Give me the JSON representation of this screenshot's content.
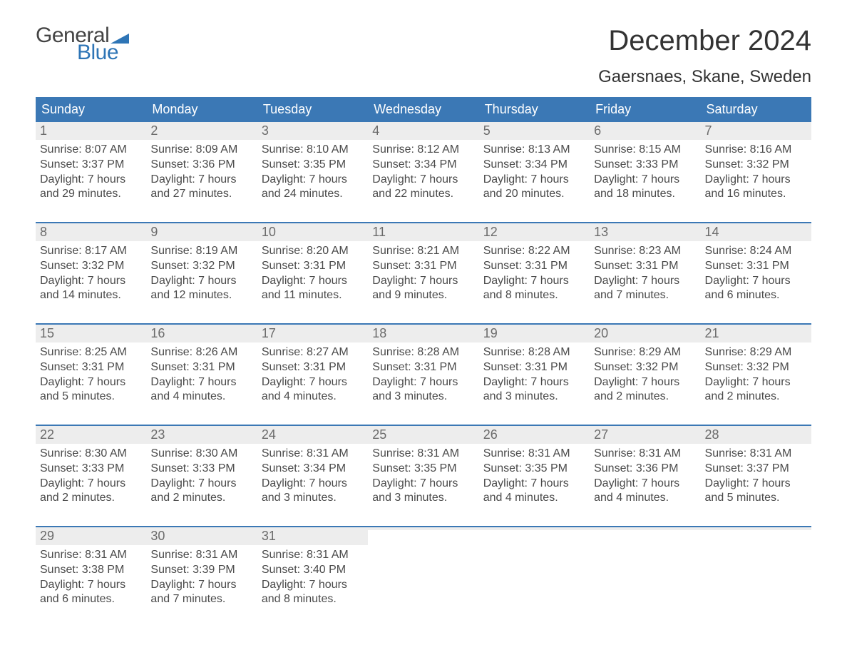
{
  "logo": {
    "text_general": "General",
    "text_blue": "Blue",
    "flag_color": "#2e75b6"
  },
  "title": "December 2024",
  "location": "Gaersnaes, Skane, Sweden",
  "colors": {
    "header_bg": "#3b78b5",
    "header_text": "#ffffff",
    "daynum_bg": "#ededed",
    "daynum_text": "#6b6b6b",
    "body_text": "#4a4a4a",
    "week_border": "#3b78b5",
    "page_bg": "#ffffff"
  },
  "typography": {
    "title_fontsize": 40,
    "location_fontsize": 24,
    "header_fontsize": 18,
    "daynum_fontsize": 18,
    "body_fontsize": 16
  },
  "day_names": [
    "Sunday",
    "Monday",
    "Tuesday",
    "Wednesday",
    "Thursday",
    "Friday",
    "Saturday"
  ],
  "weeks": [
    [
      {
        "n": 1,
        "sunrise": "8:07 AM",
        "sunset": "3:37 PM",
        "dh": 7,
        "dm": 29
      },
      {
        "n": 2,
        "sunrise": "8:09 AM",
        "sunset": "3:36 PM",
        "dh": 7,
        "dm": 27
      },
      {
        "n": 3,
        "sunrise": "8:10 AM",
        "sunset": "3:35 PM",
        "dh": 7,
        "dm": 24
      },
      {
        "n": 4,
        "sunrise": "8:12 AM",
        "sunset": "3:34 PM",
        "dh": 7,
        "dm": 22
      },
      {
        "n": 5,
        "sunrise": "8:13 AM",
        "sunset": "3:34 PM",
        "dh": 7,
        "dm": 20
      },
      {
        "n": 6,
        "sunrise": "8:15 AM",
        "sunset": "3:33 PM",
        "dh": 7,
        "dm": 18
      },
      {
        "n": 7,
        "sunrise": "8:16 AM",
        "sunset": "3:32 PM",
        "dh": 7,
        "dm": 16
      }
    ],
    [
      {
        "n": 8,
        "sunrise": "8:17 AM",
        "sunset": "3:32 PM",
        "dh": 7,
        "dm": 14
      },
      {
        "n": 9,
        "sunrise": "8:19 AM",
        "sunset": "3:32 PM",
        "dh": 7,
        "dm": 12
      },
      {
        "n": 10,
        "sunrise": "8:20 AM",
        "sunset": "3:31 PM",
        "dh": 7,
        "dm": 11
      },
      {
        "n": 11,
        "sunrise": "8:21 AM",
        "sunset": "3:31 PM",
        "dh": 7,
        "dm": 9
      },
      {
        "n": 12,
        "sunrise": "8:22 AM",
        "sunset": "3:31 PM",
        "dh": 7,
        "dm": 8
      },
      {
        "n": 13,
        "sunrise": "8:23 AM",
        "sunset": "3:31 PM",
        "dh": 7,
        "dm": 7
      },
      {
        "n": 14,
        "sunrise": "8:24 AM",
        "sunset": "3:31 PM",
        "dh": 7,
        "dm": 6
      }
    ],
    [
      {
        "n": 15,
        "sunrise": "8:25 AM",
        "sunset": "3:31 PM",
        "dh": 7,
        "dm": 5
      },
      {
        "n": 16,
        "sunrise": "8:26 AM",
        "sunset": "3:31 PM",
        "dh": 7,
        "dm": 4
      },
      {
        "n": 17,
        "sunrise": "8:27 AM",
        "sunset": "3:31 PM",
        "dh": 7,
        "dm": 4
      },
      {
        "n": 18,
        "sunrise": "8:28 AM",
        "sunset": "3:31 PM",
        "dh": 7,
        "dm": 3
      },
      {
        "n": 19,
        "sunrise": "8:28 AM",
        "sunset": "3:31 PM",
        "dh": 7,
        "dm": 3
      },
      {
        "n": 20,
        "sunrise": "8:29 AM",
        "sunset": "3:32 PM",
        "dh": 7,
        "dm": 2
      },
      {
        "n": 21,
        "sunrise": "8:29 AM",
        "sunset": "3:32 PM",
        "dh": 7,
        "dm": 2
      }
    ],
    [
      {
        "n": 22,
        "sunrise": "8:30 AM",
        "sunset": "3:33 PM",
        "dh": 7,
        "dm": 2
      },
      {
        "n": 23,
        "sunrise": "8:30 AM",
        "sunset": "3:33 PM",
        "dh": 7,
        "dm": 2
      },
      {
        "n": 24,
        "sunrise": "8:31 AM",
        "sunset": "3:34 PM",
        "dh": 7,
        "dm": 3
      },
      {
        "n": 25,
        "sunrise": "8:31 AM",
        "sunset": "3:35 PM",
        "dh": 7,
        "dm": 3
      },
      {
        "n": 26,
        "sunrise": "8:31 AM",
        "sunset": "3:35 PM",
        "dh": 7,
        "dm": 4
      },
      {
        "n": 27,
        "sunrise": "8:31 AM",
        "sunset": "3:36 PM",
        "dh": 7,
        "dm": 4
      },
      {
        "n": 28,
        "sunrise": "8:31 AM",
        "sunset": "3:37 PM",
        "dh": 7,
        "dm": 5
      }
    ],
    [
      {
        "n": 29,
        "sunrise": "8:31 AM",
        "sunset": "3:38 PM",
        "dh": 7,
        "dm": 6
      },
      {
        "n": 30,
        "sunrise": "8:31 AM",
        "sunset": "3:39 PM",
        "dh": 7,
        "dm": 7
      },
      {
        "n": 31,
        "sunrise": "8:31 AM",
        "sunset": "3:40 PM",
        "dh": 7,
        "dm": 8
      },
      null,
      null,
      null,
      null
    ]
  ],
  "labels": {
    "sunrise_prefix": "Sunrise: ",
    "sunset_prefix": "Sunset: ",
    "daylight_prefix": "Daylight: ",
    "hours_word": " hours",
    "and_word": "and ",
    "minutes_word": " minutes."
  }
}
